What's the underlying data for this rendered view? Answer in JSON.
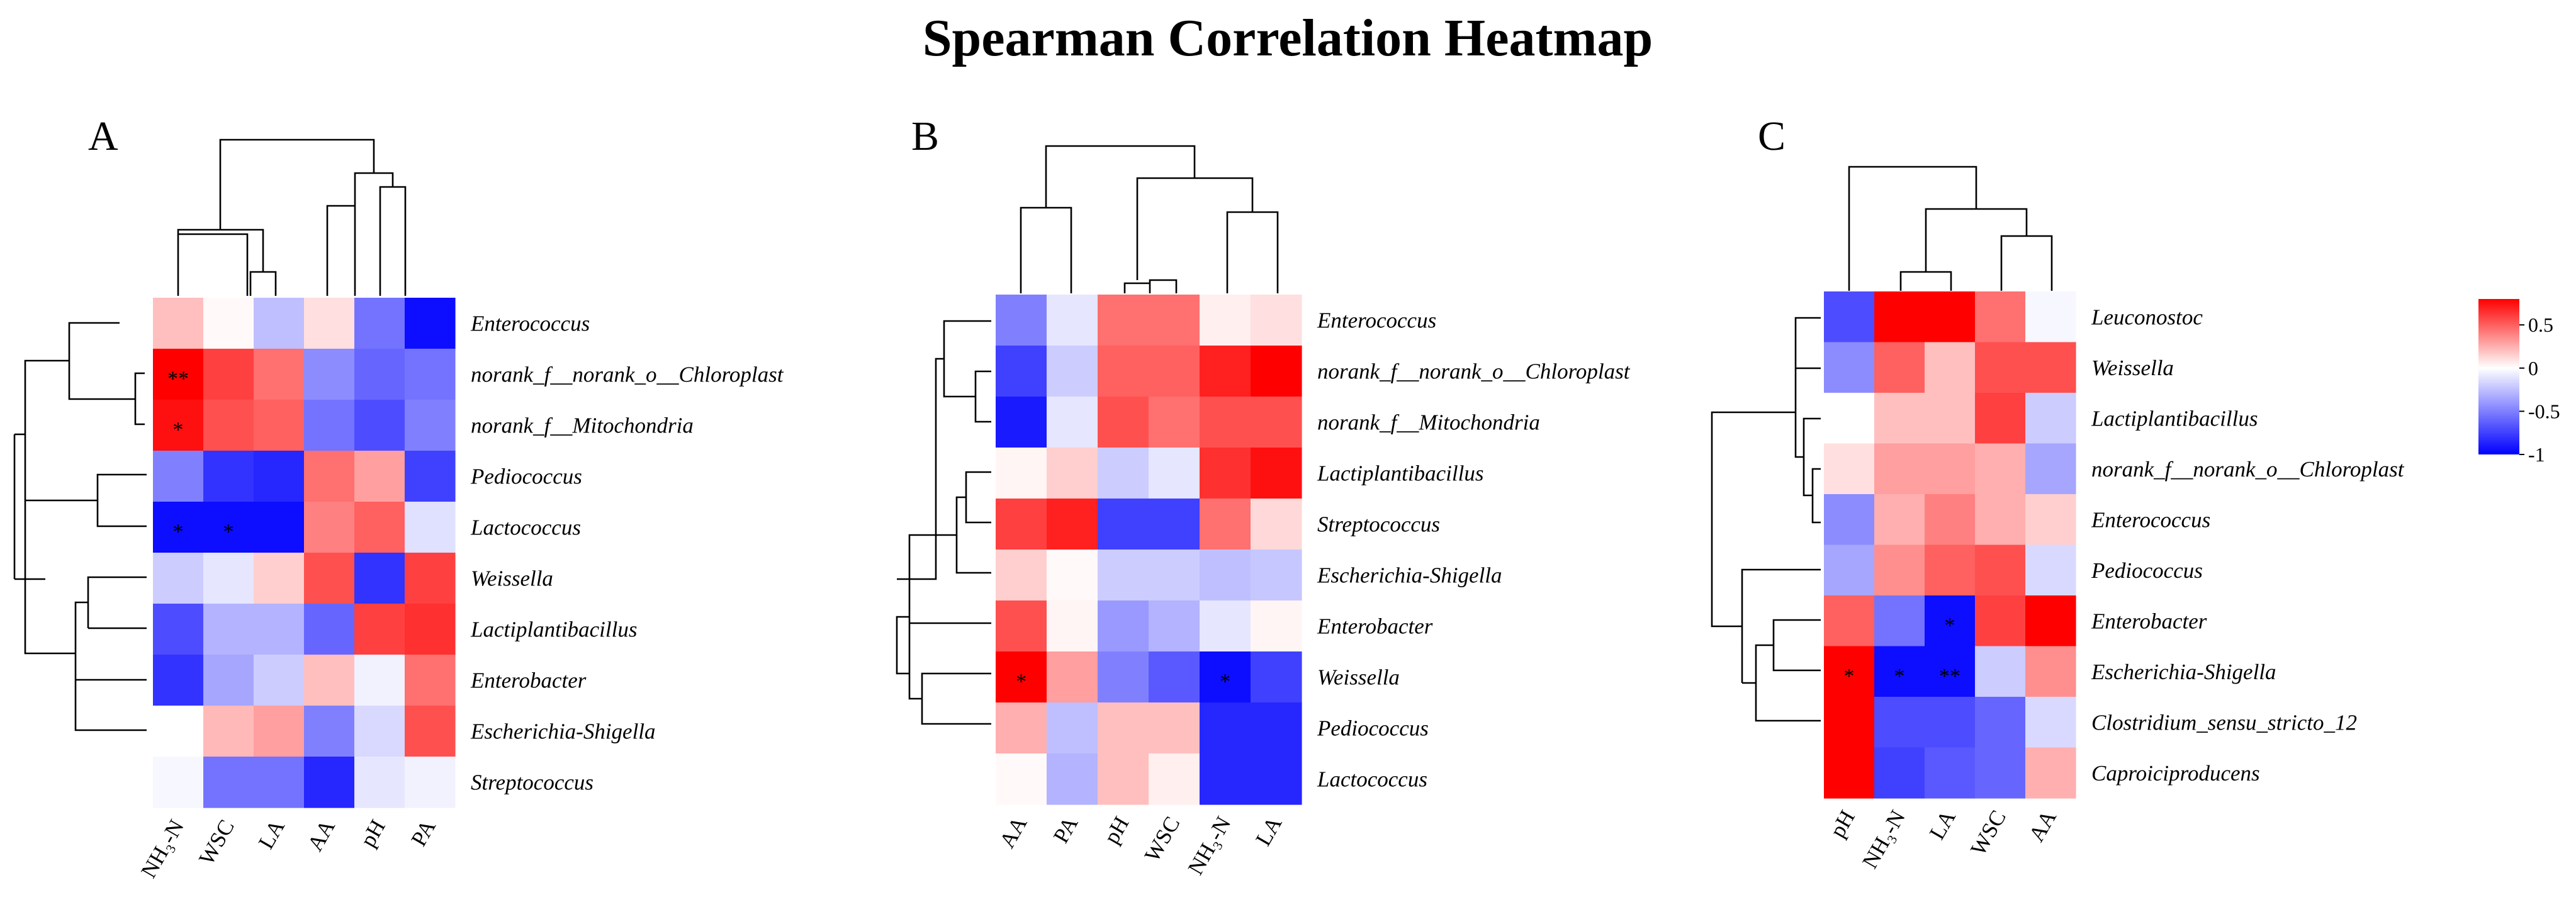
{
  "chart_data": {
    "type": "heatmap",
    "title": "Spearman Correlation Heatmap",
    "color_scale": {
      "min": -1,
      "max": 0.8,
      "low_color": "#0000ff",
      "mid_color": "#ffffff",
      "high_color": "#ff0000",
      "ticks": [
        0.5,
        0,
        -0.5,
        -1
      ]
    },
    "panels": [
      {
        "label": "A",
        "rows": [
          "Enterococcus",
          "norank_f__norank_o__Chloroplast",
          "norank_f__Mitochondria",
          "Pediococcus",
          "Lactococcus",
          "Weissella",
          "Lactiplantibacillus",
          "Enterobacter",
          "Escherichia-Shigella",
          "Streptococcus"
        ],
        "cols": [
          "NH₃-N",
          "WSC",
          "LA",
          "AA",
          "pH",
          "PA"
        ],
        "values": [
          [
            0.2,
            0.02,
            -0.25,
            0.1,
            -0.55,
            -0.95
          ],
          [
            0.8,
            0.6,
            0.45,
            -0.45,
            -0.6,
            -0.55
          ],
          [
            0.75,
            0.55,
            0.5,
            -0.55,
            -0.7,
            -0.5
          ],
          [
            -0.5,
            -0.8,
            -0.85,
            0.45,
            0.3,
            -0.75
          ],
          [
            -0.95,
            -0.95,
            -0.95,
            0.4,
            0.5,
            -0.12
          ],
          [
            -0.2,
            -0.1,
            0.15,
            0.55,
            -0.8,
            0.6
          ],
          [
            -0.7,
            -0.3,
            -0.3,
            -0.6,
            0.6,
            0.65
          ],
          [
            -0.8,
            -0.35,
            -0.2,
            0.2,
            -0.05,
            0.45
          ],
          [
            0.0,
            0.22,
            0.3,
            -0.5,
            -0.15,
            0.55
          ],
          [
            -0.03,
            -0.55,
            -0.55,
            -0.85,
            -0.1,
            -0.05
          ]
        ],
        "stars": [
          {
            "row": 1,
            "col": 0,
            "text": "**"
          },
          {
            "row": 2,
            "col": 0,
            "text": "*"
          },
          {
            "row": 4,
            "col": 0,
            "text": "*"
          },
          {
            "row": 4,
            "col": 1,
            "text": "*"
          }
        ]
      },
      {
        "label": "B",
        "rows": [
          "Enterococcus",
          "norank_f__norank_o__Chloroplast",
          "norank_f__Mitochondria",
          "Lactiplantibacillus",
          "Streptococcus",
          "Escherichia-Shigella",
          "Enterobacter",
          "Weissella",
          "Pediococcus",
          "Lactococcus"
        ],
        "cols": [
          "AA",
          "PA",
          "pH",
          "WSC",
          "NH₃-N",
          "LA"
        ],
        "values": [
          [
            -0.5,
            -0.1,
            0.45,
            0.45,
            0.05,
            0.1
          ],
          [
            -0.75,
            -0.2,
            0.5,
            0.5,
            0.7,
            0.85
          ],
          [
            -0.9,
            -0.1,
            0.55,
            0.45,
            0.55,
            0.55
          ],
          [
            0.03,
            0.15,
            -0.2,
            -0.1,
            0.65,
            0.75
          ],
          [
            0.6,
            0.7,
            -0.75,
            -0.75,
            0.45,
            0.12
          ],
          [
            0.15,
            0.02,
            -0.2,
            -0.2,
            -0.25,
            -0.22
          ],
          [
            0.55,
            0.03,
            -0.4,
            -0.3,
            -0.1,
            0.03
          ],
          [
            0.85,
            0.3,
            -0.5,
            -0.65,
            -0.95,
            -0.75
          ],
          [
            0.25,
            -0.25,
            0.2,
            0.2,
            -0.85,
            -0.85
          ],
          [
            0.02,
            -0.3,
            0.2,
            0.05,
            -0.85,
            -0.85
          ]
        ],
        "stars": [
          {
            "row": 7,
            "col": 0,
            "text": "*"
          },
          {
            "row": 7,
            "col": 4,
            "text": "*"
          }
        ]
      },
      {
        "label": "C",
        "rows": [
          "Leuconostoc",
          "Weissella",
          "Lactiplantibacillus",
          "norank_f__norank_o__Chloroplast",
          "Enterococcus",
          "Pediococcus",
          "Enterobacter",
          "Escherichia-Shigella",
          "Clostridium_sensu_stricto_12",
          "Caproiciproducens"
        ],
        "cols": [
          "pH",
          "NH₃-N",
          "LA",
          "WSC",
          "AA"
        ],
        "values": [
          [
            -0.7,
            0.85,
            0.85,
            0.45,
            -0.03
          ],
          [
            -0.45,
            0.5,
            0.2,
            0.55,
            0.55
          ],
          [
            0.0,
            0.2,
            0.2,
            0.6,
            -0.2
          ],
          [
            0.1,
            0.3,
            0.3,
            0.25,
            -0.35
          ],
          [
            -0.45,
            0.25,
            0.4,
            0.25,
            0.15
          ],
          [
            -0.35,
            0.35,
            0.5,
            0.55,
            -0.15
          ],
          [
            0.5,
            -0.55,
            -0.95,
            0.6,
            0.8
          ],
          [
            0.95,
            -0.95,
            -0.95,
            -0.2,
            0.35
          ],
          [
            0.95,
            -0.7,
            -0.7,
            -0.6,
            -0.15
          ],
          [
            0.85,
            -0.75,
            -0.65,
            -0.6,
            0.25
          ]
        ],
        "stars": [
          {
            "row": 6,
            "col": 2,
            "text": "*"
          },
          {
            "row": 7,
            "col": 0,
            "text": "*"
          },
          {
            "row": 7,
            "col": 1,
            "text": "*"
          },
          {
            "row": 7,
            "col": 2,
            "text": "**"
          }
        ]
      }
    ]
  }
}
